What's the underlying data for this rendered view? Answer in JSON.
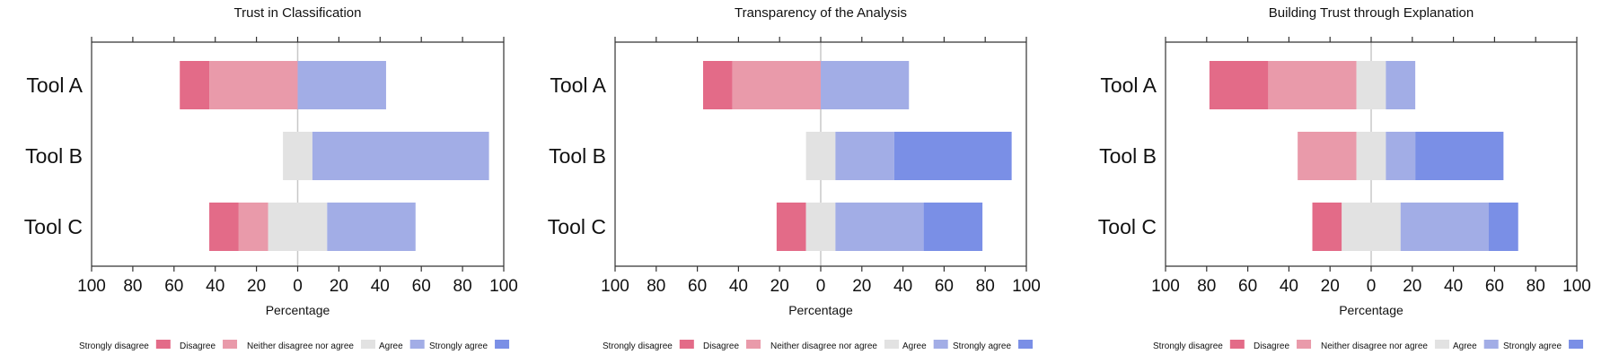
{
  "chart_data": [
    {
      "type": "bar",
      "orientation": "horizontal-diverging-stacked",
      "title": "Trust in Classification",
      "xlabel": "Percentage",
      "xlim": [
        -100,
        100
      ],
      "xticks": [
        -100,
        -80,
        -60,
        -40,
        -20,
        0,
        20,
        40,
        60,
        80,
        100
      ],
      "xtick_labels": [
        "100",
        "80",
        "60",
        "40",
        "20",
        "0",
        "20",
        "40",
        "60",
        "80",
        "100"
      ],
      "categories": [
        "Tool A",
        "Tool B",
        "Tool C"
      ],
      "series": [
        {
          "name": "Strongly disagree",
          "values": [
            14.3,
            0,
            14.3
          ]
        },
        {
          "name": "Disagree",
          "values": [
            42.9,
            0,
            14.3
          ]
        },
        {
          "name": "Neither disagree nor agree",
          "values": [
            0,
            14.3,
            28.6
          ]
        },
        {
          "name": "Agree",
          "values": [
            42.9,
            85.7,
            42.9
          ]
        },
        {
          "name": "Strongly agree",
          "values": [
            0,
            0,
            0
          ]
        }
      ]
    },
    {
      "type": "bar",
      "orientation": "horizontal-diverging-stacked",
      "title": "Transparency of the Analysis",
      "xlabel": "Percentage",
      "xlim": [
        -100,
        100
      ],
      "xticks": [
        -100,
        -80,
        -60,
        -40,
        -20,
        0,
        20,
        40,
        60,
        80,
        100
      ],
      "xtick_labels": [
        "100",
        "80",
        "60",
        "40",
        "20",
        "0",
        "20",
        "40",
        "60",
        "80",
        "100"
      ],
      "categories": [
        "Tool A",
        "Tool B",
        "Tool C"
      ],
      "series": [
        {
          "name": "Strongly disagree",
          "values": [
            14.3,
            0,
            14.3
          ]
        },
        {
          "name": "Disagree",
          "values": [
            42.9,
            0,
            0
          ]
        },
        {
          "name": "Neither disagree nor agree",
          "values": [
            0,
            14.3,
            14.3
          ]
        },
        {
          "name": "Agree",
          "values": [
            42.9,
            28.6,
            42.9
          ]
        },
        {
          "name": "Strongly agree",
          "values": [
            0,
            57.1,
            28.6
          ]
        }
      ]
    },
    {
      "type": "bar",
      "orientation": "horizontal-diverging-stacked",
      "title": "Building Trust through Explanation",
      "xlabel": "Percentage",
      "xlim": [
        -100,
        100
      ],
      "xticks": [
        -100,
        -80,
        -60,
        -40,
        -20,
        0,
        20,
        40,
        60,
        80,
        100
      ],
      "xtick_labels": [
        "100",
        "80",
        "60",
        "40",
        "20",
        "0",
        "20",
        "40",
        "60",
        "80",
        "100"
      ],
      "categories": [
        "Tool A",
        "Tool B",
        "Tool C"
      ],
      "series": [
        {
          "name": "Strongly disagree",
          "values": [
            28.6,
            0,
            14.3
          ]
        },
        {
          "name": "Disagree",
          "values": [
            42.9,
            28.6,
            0
          ]
        },
        {
          "name": "Neither disagree nor agree",
          "values": [
            14.3,
            14.3,
            28.6
          ]
        },
        {
          "name": "Agree",
          "values": [
            14.3,
            14.3,
            42.9
          ]
        },
        {
          "name": "Strongly agree",
          "values": [
            0,
            42.9,
            14.3
          ]
        }
      ]
    }
  ],
  "legend": {
    "placement": "bottom",
    "items": [
      {
        "label": "Strongly disagree",
        "color": "#e36b88"
      },
      {
        "label": "Disagree",
        "color": "#e99aaa"
      },
      {
        "label": "Neither disagree nor agree",
        "color": "#e2e2e2"
      },
      {
        "label": "Agree",
        "color": "#a2ade6"
      },
      {
        "label": "Strongly agree",
        "color": "#7a8fe6"
      }
    ]
  },
  "style": {
    "center_line_color": "#c8c8c8",
    "axis_color": "#333333"
  }
}
